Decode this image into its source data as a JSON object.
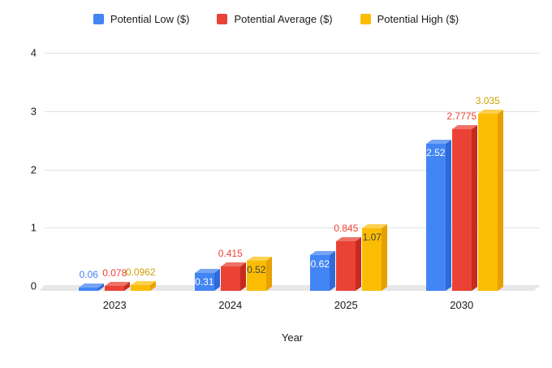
{
  "chart_data": {
    "type": "bar",
    "variant": "3d-column",
    "title": "",
    "xlabel": "Year",
    "ylabel": "",
    "ylim": [
      0,
      4
    ],
    "yticks": [
      0,
      1,
      2,
      3,
      4
    ],
    "grid": true,
    "legend_position": "top",
    "categories": [
      "2023",
      "2024",
      "2025",
      "2030"
    ],
    "series": [
      {
        "name": "Potential Low ($)",
        "values": [
          0.06,
          0.31,
          0.62,
          2.52
        ],
        "labels": [
          "0.06",
          "0.31",
          "0.62",
          "2.52"
        ],
        "label_placement": [
          "outside",
          "inside",
          "inside",
          "inside"
        ],
        "color": "#4285f4",
        "color_top": "#74a4f5",
        "color_side": "#2f6ad9",
        "label_color_outside": "#4285f4",
        "label_color_inside": "#ffffff"
      },
      {
        "name": "Potential Average ($)",
        "values": [
          0.078,
          0.415,
          0.845,
          2.7775
        ],
        "labels": [
          "0.078",
          "0.415",
          "0.845",
          "2.7775"
        ],
        "label_placement": [
          "outside",
          "outside",
          "outside",
          "outside"
        ],
        "color": "#ea4335",
        "color_top": "#ef7268",
        "color_side": "#c62b1e",
        "label_color_outside": "#ea4335",
        "label_color_inside": "#ffffff"
      },
      {
        "name": "Potential High ($)",
        "values": [
          0.0962,
          0.52,
          1.07,
          3.035
        ],
        "labels": [
          "0.0962",
          "0.52",
          "1.07",
          "3.035"
        ],
        "label_placement": [
          "outside",
          "inside",
          "inside",
          "outside"
        ],
        "color": "#fbbc04",
        "color_top": "#fcd14f",
        "color_side": "#e8a000",
        "label_color_outside": "#cda004",
        "label_color_inside": "#454545"
      }
    ]
  }
}
